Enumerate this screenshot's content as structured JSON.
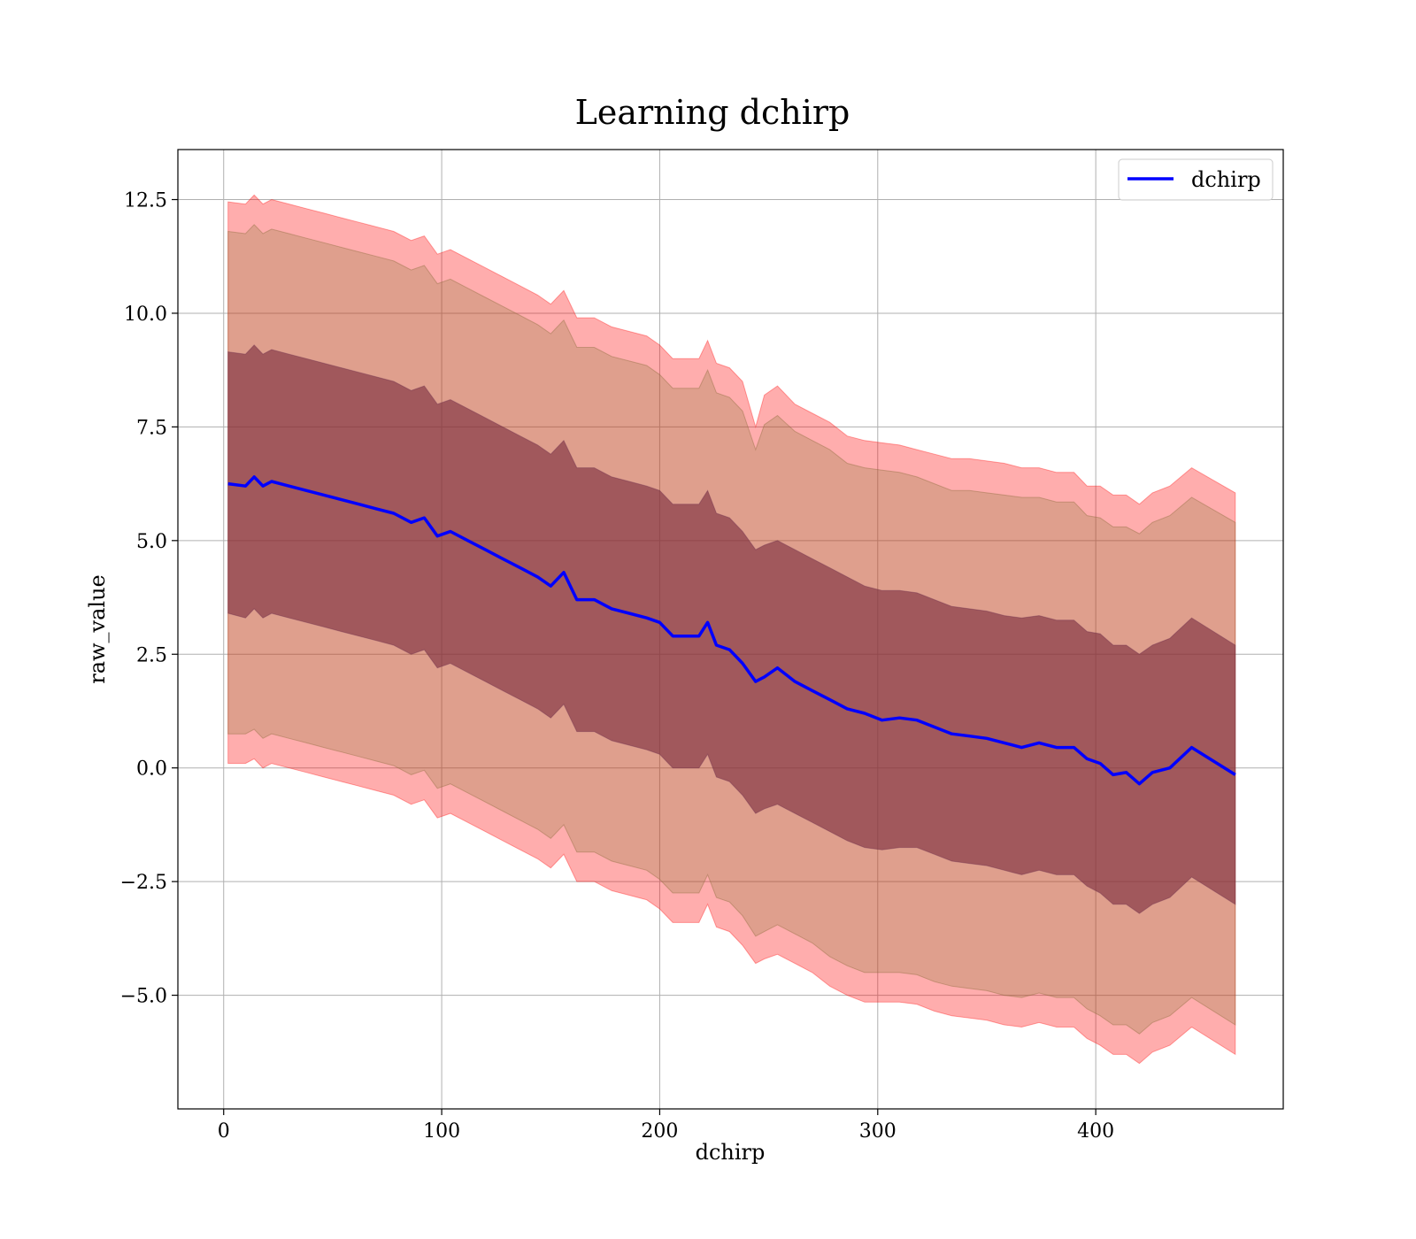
{
  "chart_data": {
    "type": "area",
    "title": "Learning dchirp",
    "xlabel": "dchirp",
    "ylabel": "raw_value",
    "xlim": [
      -21,
      486
    ],
    "ylim": [
      -7.5,
      13.6
    ],
    "xticks": [
      0,
      100,
      200,
      300,
      400
    ],
    "xtick_labels": [
      "0",
      "100",
      "200",
      "300",
      "400"
    ],
    "yticks": [
      -5.0,
      -2.5,
      0.0,
      2.5,
      5.0,
      7.5,
      10.0,
      12.5
    ],
    "ytick_labels": [
      "−5.0",
      "−2.5",
      "0.0",
      "2.5",
      "5.0",
      "7.5",
      "10.0",
      "12.5"
    ],
    "grid": true,
    "legend_position": "top-right",
    "colors": {
      "mean_line": "#0000ff",
      "outer_band": "#ff0000",
      "outer_band_opacity": 0.32,
      "inner_band": "#7a2d3f",
      "inner_band_opacity": 0.62,
      "grid": "#b0b0b0"
    },
    "series": [
      {
        "name": "dchirp",
        "x": [
          2,
          10,
          14,
          18,
          22,
          30,
          38,
          46,
          54,
          62,
          70,
          78,
          86,
          92,
          98,
          104,
          112,
          120,
          128,
          136,
          144,
          150,
          156,
          162,
          170,
          178,
          186,
          194,
          200,
          206,
          212,
          218,
          222,
          226,
          232,
          238,
          244,
          248,
          254,
          262,
          270,
          278,
          286,
          294,
          302,
          310,
          318,
          326,
          334,
          342,
          350,
          358,
          366,
          374,
          382,
          390,
          396,
          402,
          408,
          414,
          420,
          426,
          434,
          444,
          464
        ],
        "y": [
          6.25,
          6.2,
          6.4,
          6.2,
          6.3,
          6.2,
          6.1,
          6.0,
          5.9,
          5.8,
          5.7,
          5.6,
          5.4,
          5.5,
          5.1,
          5.2,
          5.0,
          4.8,
          4.6,
          4.4,
          4.2,
          4.0,
          4.3,
          3.7,
          3.7,
          3.5,
          3.4,
          3.3,
          3.2,
          2.9,
          2.9,
          2.9,
          3.2,
          2.7,
          2.6,
          2.3,
          1.9,
          2.0,
          2.2,
          1.9,
          1.7,
          1.5,
          1.3,
          1.2,
          1.05,
          1.1,
          1.05,
          0.9,
          0.75,
          0.7,
          0.65,
          0.55,
          0.45,
          0.55,
          0.45,
          0.45,
          0.2,
          0.1,
          -0.15,
          -0.1,
          -0.35,
          -0.1,
          0.0,
          0.45,
          -0.15
        ],
        "inner_upper": [
          9.15,
          9.1,
          9.3,
          9.1,
          9.2,
          9.1,
          9.0,
          8.9,
          8.8,
          8.7,
          8.6,
          8.5,
          8.3,
          8.4,
          8.0,
          8.1,
          7.9,
          7.7,
          7.5,
          7.3,
          7.1,
          6.9,
          7.2,
          6.6,
          6.6,
          6.4,
          6.3,
          6.2,
          6.1,
          5.8,
          5.8,
          5.8,
          6.1,
          5.6,
          5.5,
          5.2,
          4.8,
          4.9,
          5.0,
          4.8,
          4.6,
          4.4,
          4.2,
          4.0,
          3.9,
          3.9,
          3.85,
          3.7,
          3.55,
          3.5,
          3.45,
          3.35,
          3.3,
          3.35,
          3.25,
          3.25,
          3.0,
          2.95,
          2.7,
          2.7,
          2.5,
          2.7,
          2.85,
          3.3,
          2.7
        ],
        "inner_lower": [
          3.4,
          3.3,
          3.5,
          3.3,
          3.4,
          3.3,
          3.2,
          3.1,
          3.0,
          2.9,
          2.8,
          2.7,
          2.5,
          2.6,
          2.2,
          2.3,
          2.1,
          1.9,
          1.7,
          1.5,
          1.3,
          1.1,
          1.4,
          0.8,
          0.8,
          0.6,
          0.5,
          0.4,
          0.3,
          0.0,
          0.0,
          0.0,
          0.3,
          -0.2,
          -0.3,
          -0.6,
          -1.0,
          -0.9,
          -0.8,
          -1.0,
          -1.2,
          -1.4,
          -1.6,
          -1.75,
          -1.8,
          -1.75,
          -1.75,
          -1.9,
          -2.05,
          -2.1,
          -2.15,
          -2.25,
          -2.35,
          -2.25,
          -2.35,
          -2.35,
          -2.6,
          -2.75,
          -3.0,
          -3.0,
          -3.2,
          -3.0,
          -2.85,
          -2.4,
          -3.0
        ],
        "outer_upper": [
          12.45,
          12.4,
          12.6,
          12.4,
          12.5,
          12.4,
          12.3,
          12.2,
          12.1,
          12.0,
          11.9,
          11.8,
          11.6,
          11.7,
          11.3,
          11.4,
          11.2,
          11.0,
          10.8,
          10.6,
          10.4,
          10.2,
          10.5,
          9.9,
          9.9,
          9.7,
          9.6,
          9.5,
          9.3,
          9.0,
          9.0,
          9.0,
          9.4,
          8.9,
          8.8,
          8.5,
          7.5,
          8.2,
          8.4,
          8.0,
          7.8,
          7.6,
          7.3,
          7.2,
          7.15,
          7.1,
          7.0,
          6.9,
          6.8,
          6.8,
          6.75,
          6.7,
          6.6,
          6.6,
          6.5,
          6.5,
          6.2,
          6.2,
          6.0,
          6.0,
          5.8,
          6.05,
          6.2,
          6.6,
          6.05
        ],
        "outer_lower": [
          0.1,
          0.1,
          0.2,
          0.0,
          0.1,
          0.0,
          -0.1,
          -0.2,
          -0.3,
          -0.4,
          -0.5,
          -0.6,
          -0.8,
          -0.7,
          -1.1,
          -1.0,
          -1.2,
          -1.4,
          -1.6,
          -1.8,
          -2.0,
          -2.2,
          -1.9,
          -2.5,
          -2.5,
          -2.7,
          -2.8,
          -2.9,
          -3.1,
          -3.4,
          -3.4,
          -3.4,
          -3.0,
          -3.5,
          -3.6,
          -3.9,
          -4.3,
          -4.2,
          -4.1,
          -4.3,
          -4.5,
          -4.8,
          -5.0,
          -5.15,
          -5.15,
          -5.15,
          -5.2,
          -5.35,
          -5.45,
          -5.5,
          -5.55,
          -5.65,
          -5.7,
          -5.6,
          -5.7,
          -5.7,
          -5.95,
          -6.1,
          -6.3,
          -6.3,
          -6.5,
          -6.25,
          -6.1,
          -5.7,
          -6.3
        ],
        "mid_upper": [
          11.8,
          11.75,
          11.95,
          11.75,
          11.85,
          11.75,
          11.65,
          11.55,
          11.45,
          11.35,
          11.25,
          11.15,
          10.95,
          11.05,
          10.65,
          10.75,
          10.55,
          10.35,
          10.15,
          9.95,
          9.75,
          9.55,
          9.85,
          9.25,
          9.25,
          9.05,
          8.95,
          8.85,
          8.65,
          8.35,
          8.35,
          8.35,
          8.75,
          8.25,
          8.15,
          7.85,
          7.0,
          7.55,
          7.75,
          7.4,
          7.2,
          7.0,
          6.7,
          6.6,
          6.55,
          6.5,
          6.4,
          6.25,
          6.1,
          6.1,
          6.05,
          6.0,
          5.95,
          5.95,
          5.85,
          5.85,
          5.55,
          5.5,
          5.3,
          5.3,
          5.15,
          5.4,
          5.55,
          5.95,
          5.4
        ],
        "mid_lower": [
          0.75,
          0.75,
          0.85,
          0.65,
          0.75,
          0.65,
          0.55,
          0.45,
          0.35,
          0.25,
          0.15,
          0.05,
          -0.15,
          -0.05,
          -0.45,
          -0.35,
          -0.55,
          -0.75,
          -0.95,
          -1.15,
          -1.35,
          -1.55,
          -1.25,
          -1.85,
          -1.85,
          -2.05,
          -2.15,
          -2.25,
          -2.45,
          -2.75,
          -2.75,
          -2.75,
          -2.35,
          -2.85,
          -2.95,
          -3.25,
          -3.7,
          -3.6,
          -3.45,
          -3.65,
          -3.85,
          -4.15,
          -4.35,
          -4.5,
          -4.5,
          -4.5,
          -4.55,
          -4.7,
          -4.8,
          -4.85,
          -4.9,
          -5.0,
          -5.05,
          -4.95,
          -5.05,
          -5.05,
          -5.3,
          -5.45,
          -5.65,
          -5.65,
          -5.85,
          -5.6,
          -5.45,
          -5.05,
          -5.65
        ]
      }
    ]
  }
}
